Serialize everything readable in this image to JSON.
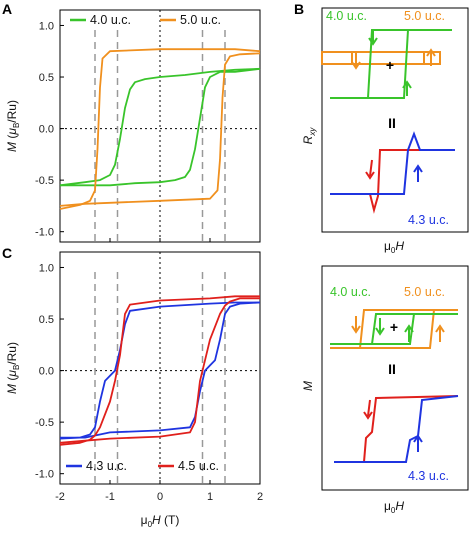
{
  "panels": {
    "A": "A",
    "B": "B",
    "C": "C"
  },
  "colors": {
    "uc40": "#39c42b",
    "uc50": "#f0901e",
    "uc43": "#1f34e0",
    "uc45": "#e0201c"
  },
  "chart_data": [
    {
      "id": "A",
      "type": "line",
      "xlabel_prefix": "μ",
      "xlabel_sub": "0",
      "xlabel_suffix": "H (T)",
      "ylabel_prefix": "M (",
      "ylabel_mu": "μ",
      "ylabel_sub": "B",
      "ylabel_suffix": "/Ru)",
      "xlim": [
        -2,
        2
      ],
      "ylim": [
        -1.1,
        1.15
      ],
      "xticks": [
        "-2",
        "-1",
        "0",
        "1",
        "2"
      ],
      "yticks": [
        "1.0",
        "0.5",
        "0.0",
        "-0.5",
        "-1.0"
      ],
      "ytick_values": [
        1.0,
        0.5,
        0.0,
        -0.5,
        -1.0
      ],
      "xtick_values": [
        -2,
        -1,
        0,
        1,
        2
      ],
      "guides_x": [
        -1.3,
        -0.85,
        0.85,
        1.3
      ],
      "legend_placement": "top",
      "series": [
        {
          "name": "4.0 u.c.",
          "color_key": "uc40",
          "branch": "ascending",
          "x": [
            -2.0,
            -1.5,
            -1.0,
            -0.5,
            0.0,
            0.3,
            0.5,
            0.6,
            0.7,
            0.8,
            0.9,
            1.0,
            1.2,
            1.5,
            2.0
          ],
          "y": [
            -0.55,
            -0.55,
            -0.55,
            -0.53,
            -0.52,
            -0.5,
            -0.47,
            -0.4,
            -0.2,
            0.1,
            0.4,
            0.5,
            0.55,
            0.55,
            0.58
          ]
        },
        {
          "name": "4.0 u.c.",
          "color_key": "uc40",
          "branch": "descending",
          "x": [
            2.0,
            1.5,
            1.0,
            0.5,
            0.0,
            -0.3,
            -0.5,
            -0.6,
            -0.7,
            -0.8,
            -0.9,
            -1.0,
            -1.2,
            -1.5,
            -2.0
          ],
          "y": [
            0.58,
            0.57,
            0.55,
            0.52,
            0.5,
            0.48,
            0.45,
            0.38,
            0.2,
            -0.1,
            -0.35,
            -0.45,
            -0.5,
            -0.52,
            -0.55
          ]
        },
        {
          "name": "5.0 u.c.",
          "color_key": "uc50",
          "branch": "ascending",
          "x": [
            -2.0,
            -1.5,
            -1.0,
            0.0,
            1.0,
            1.15,
            1.2,
            1.25,
            1.3,
            1.4,
            1.6,
            2.0
          ],
          "y": [
            -0.75,
            -0.73,
            -0.72,
            -0.7,
            -0.68,
            -0.6,
            -0.3,
            0.3,
            0.62,
            0.7,
            0.72,
            0.73
          ]
        },
        {
          "name": "5.0 u.c.",
          "color_key": "uc50",
          "branch": "descending",
          "x": [
            2.0,
            1.5,
            1.0,
            0.0,
            -1.0,
            -1.15,
            -1.2,
            -1.25,
            -1.3,
            -1.4,
            -1.6,
            -2.0
          ],
          "y": [
            0.75,
            0.77,
            0.77,
            0.77,
            0.75,
            0.68,
            0.4,
            -0.2,
            -0.6,
            -0.7,
            -0.74,
            -0.78
          ]
        }
      ]
    },
    {
      "id": "C",
      "type": "line",
      "xlabel_prefix": "μ",
      "xlabel_sub": "0",
      "xlabel_suffix": "H (T)",
      "ylabel_prefix": "M (",
      "ylabel_mu": "μ",
      "ylabel_sub": "B",
      "ylabel_suffix": "/Ru)",
      "xlim": [
        -2,
        2
      ],
      "ylim": [
        -1.1,
        1.15
      ],
      "xticks": [
        "-2",
        "-1",
        "0",
        "1",
        "2"
      ],
      "yticks": [
        "1.0",
        "0.5",
        "0.0",
        "-0.5",
        "-1.0"
      ],
      "ytick_values": [
        1.0,
        0.5,
        0.0,
        -0.5,
        -1.0
      ],
      "xtick_values": [
        -2,
        -1,
        0,
        1,
        2
      ],
      "guides_x": [
        -1.3,
        -0.85,
        0.85,
        1.3
      ],
      "legend_placement": "bottom",
      "series": [
        {
          "name": "4.3 u.c.",
          "color_key": "uc43",
          "branch": "ascending",
          "x": [
            -2.0,
            -1.5,
            -1.0,
            0.0,
            0.6,
            0.7,
            0.8,
            0.9,
            1.0,
            1.1,
            1.2,
            1.3,
            1.4,
            1.6,
            2.0
          ],
          "y": [
            -0.65,
            -0.65,
            -0.6,
            -0.58,
            -0.55,
            -0.45,
            -0.2,
            0.0,
            0.05,
            0.1,
            0.3,
            0.55,
            0.62,
            0.65,
            0.66
          ]
        },
        {
          "name": "4.3 u.c.",
          "color_key": "uc43",
          "branch": "descending",
          "x": [
            2.0,
            1.5,
            1.0,
            0.0,
            -0.6,
            -0.7,
            -0.8,
            -0.9,
            -1.0,
            -1.1,
            -1.2,
            -1.3,
            -1.4,
            -1.6,
            -2.0
          ],
          "y": [
            0.66,
            0.66,
            0.65,
            0.62,
            0.58,
            0.45,
            0.2,
            0.0,
            -0.05,
            -0.1,
            -0.3,
            -0.55,
            -0.62,
            -0.65,
            -0.66
          ]
        },
        {
          "name": "4.5 u.c.",
          "color_key": "uc45",
          "branch": "ascending",
          "x": [
            -2.0,
            -1.5,
            -1.0,
            0.0,
            0.6,
            0.7,
            0.8,
            0.9,
            1.0,
            1.2,
            1.3,
            1.4,
            1.6,
            2.0
          ],
          "y": [
            -0.7,
            -0.68,
            -0.66,
            -0.64,
            -0.6,
            -0.5,
            -0.1,
            0.1,
            0.3,
            0.55,
            0.63,
            0.67,
            0.7,
            0.7
          ]
        },
        {
          "name": "4.5 u.c.",
          "color_key": "uc45",
          "branch": "descending",
          "x": [
            2.0,
            1.5,
            1.0,
            0.0,
            -0.6,
            -0.7,
            -0.8,
            -0.9,
            -1.0,
            -1.2,
            -1.3,
            -1.4,
            -1.6,
            -2.0
          ],
          "y": [
            0.72,
            0.72,
            0.7,
            0.68,
            0.64,
            0.55,
            0.15,
            -0.1,
            -0.3,
            -0.55,
            -0.63,
            -0.67,
            -0.7,
            -0.72
          ]
        }
      ]
    }
  ],
  "schematic_B": {
    "ylabel_main": "R",
    "ylabel_sub": "xy",
    "xlabel_mu": "μ",
    "xlabel_sub": "0",
    "xlabel_suffix": "H",
    "label_40": "4.0 u.c.",
    "label_50": "5.0 u.c.",
    "label_43": "4.3 u.c.",
    "plus": "+",
    "equals": "II"
  },
  "schematic_D": {
    "ylabel_main": "M",
    "xlabel_mu": "μ",
    "xlabel_sub": "0",
    "xlabel_suffix": "H",
    "label_40": "4.0 u.c.",
    "label_50": "5.0 u.c.",
    "label_43": "4.3 u.c.",
    "plus": "+",
    "equals": "II"
  }
}
